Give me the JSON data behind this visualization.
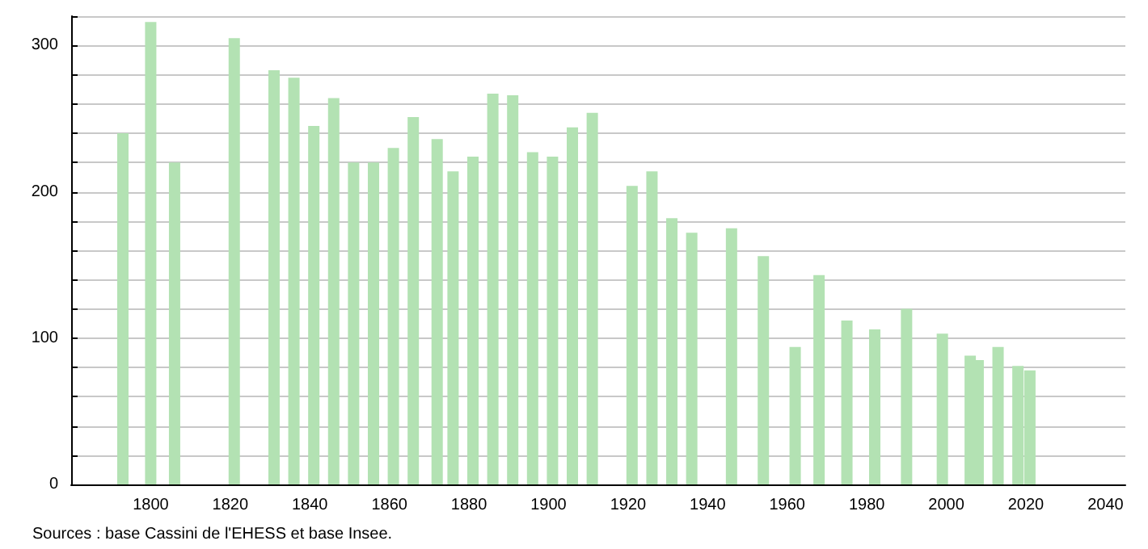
{
  "chart_data": {
    "type": "bar",
    "color": "#b3e2b3",
    "x": [
      1793,
      1800,
      1806,
      1821,
      1831,
      1836,
      1841,
      1846,
      1851,
      1856,
      1861,
      1866,
      1872,
      1876,
      1881,
      1886,
      1891,
      1896,
      1901,
      1906,
      1911,
      1921,
      1926,
      1931,
      1936,
      1946,
      1954,
      1962,
      1968,
      1975,
      1982,
      1990,
      1999,
      2006,
      2008,
      2013,
      2018,
      2021
    ],
    "values": [
      240,
      316,
      220,
      305,
      283,
      278,
      245,
      264,
      220,
      220,
      230,
      251,
      236,
      214,
      224,
      267,
      266,
      227,
      224,
      244,
      254,
      204,
      214,
      182,
      172,
      175,
      156,
      94,
      143,
      112,
      106,
      120,
      103,
      88,
      85,
      94,
      81,
      78
    ],
    "xlim": [
      1780,
      2045
    ],
    "xticks": [
      1800,
      1820,
      1840,
      1860,
      1880,
      1900,
      1920,
      1940,
      1960,
      1980,
      2000,
      2020,
      2040
    ],
    "ylim": [
      0,
      320
    ],
    "yticks": [
      0,
      {
        "value": 20,
        "label": null
      },
      {
        "value": 40,
        "label": null
      },
      {
        "value": 60,
        "label": null
      },
      {
        "value": 80,
        "label": null
      },
      100,
      {
        "value": 120,
        "label": null
      },
      {
        "value": 140,
        "label": null
      },
      {
        "value": 160,
        "label": null
      },
      {
        "value": 180,
        "label": null
      },
      200,
      {
        "value": 220,
        "label": null
      },
      {
        "value": 240,
        "label": null
      },
      {
        "value": 260,
        "label": null
      },
      {
        "value": 280,
        "label": null
      },
      300,
      {
        "value": 320,
        "label": null
      }
    ],
    "grid": "y",
    "annotations": [
      "Sources : base Cassini de l'EHESS et base Insee."
    ]
  }
}
